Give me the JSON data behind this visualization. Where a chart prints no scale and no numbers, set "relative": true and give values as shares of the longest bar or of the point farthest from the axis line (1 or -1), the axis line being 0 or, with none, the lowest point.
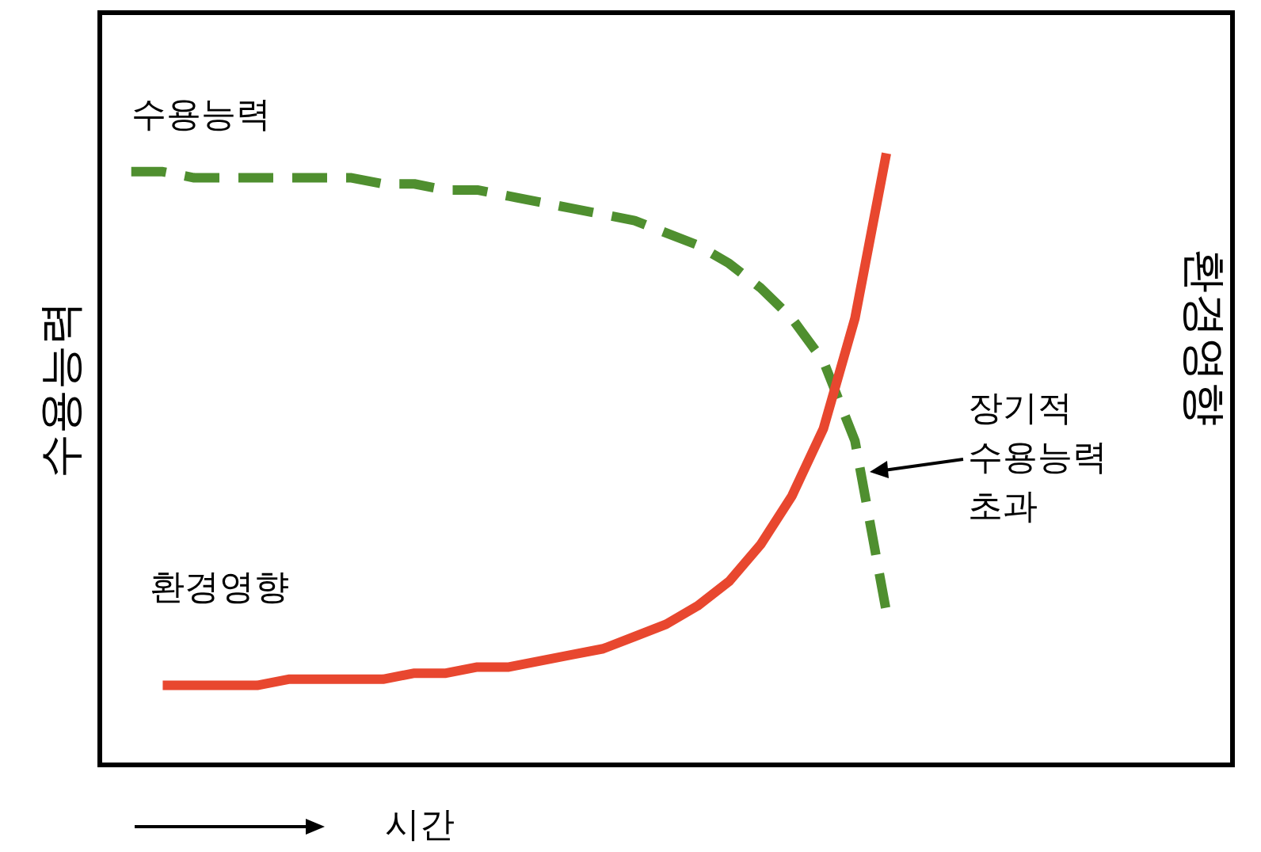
{
  "chart_data": {
    "type": "line",
    "relative": true,
    "xlabel": "시간",
    "ylabel": "수용능력",
    "y2label": "환경영향",
    "grid": false,
    "categories": [
      null,
      null,
      null,
      null,
      null,
      null,
      null,
      null,
      null,
      null,
      null,
      null,
      null,
      null,
      null,
      null,
      null,
      null,
      null,
      null,
      null,
      null,
      null,
      null,
      null,
      null,
      null,
      null,
      null,
      null,
      null,
      null,
      null,
      null,
      null
    ],
    "annotations": [
      "장기적\n수용능력\n초과"
    ],
    "series": [
      {
        "name": "수용능력",
        "color": "#4f8f2f",
        "line_style": "dashed",
        "values": [
          0.97,
          0.97,
          0.96,
          0.96,
          0.96,
          0.96,
          0.96,
          0.96,
          0.95,
          0.95,
          0.94,
          0.94,
          0.93,
          0.92,
          0.91,
          0.9,
          0.89,
          0.87,
          0.85,
          0.82,
          0.78,
          0.73,
          0.66,
          0.53,
          0.25,
          null,
          null,
          null,
          null,
          null,
          null,
          null,
          null,
          null,
          null
        ]
      },
      {
        "name": "환경영향",
        "color": "#e8472f",
        "line_style": "solid",
        "values": [
          null,
          0.13,
          0.13,
          0.13,
          0.13,
          0.14,
          0.14,
          0.14,
          0.14,
          0.15,
          0.15,
          0.16,
          0.16,
          0.17,
          0.18,
          0.19,
          0.21,
          0.23,
          0.26,
          0.3,
          0.36,
          0.44,
          0.55,
          0.73,
          1,
          null,
          null,
          null,
          null,
          null,
          null,
          null,
          null,
          null,
          null
        ]
      }
    ]
  }
}
